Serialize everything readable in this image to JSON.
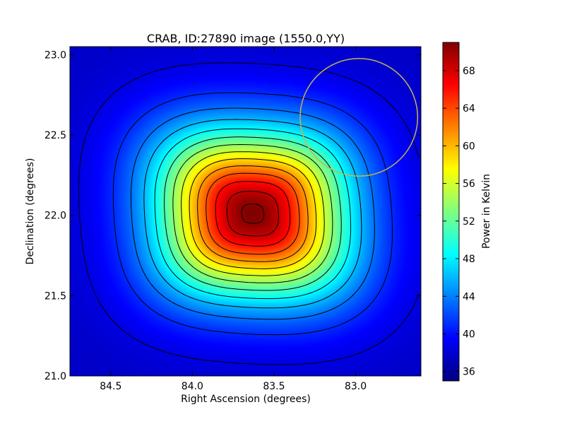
{
  "chart_data": {
    "type": "heatmap",
    "title": "CRAB, ID:27890 image (1550.0,YY)",
    "xlabel": "Right Ascension (degrees)",
    "ylabel": "Declination (degrees)",
    "colorbar_label": "Power in Kelvin",
    "xlim": [
      84.75,
      82.6
    ],
    "ylim": [
      21.0,
      23.05
    ],
    "x_ticks": [
      84.5,
      84.0,
      83.5,
      83.0
    ],
    "x_tick_labels": [
      "84.5",
      "84.0",
      "83.5",
      "83.0"
    ],
    "y_ticks": [
      21.0,
      21.5,
      22.0,
      22.5,
      23.0
    ],
    "y_tick_labels": [
      "21.0",
      "21.5",
      "22.0",
      "22.5",
      "23.0"
    ],
    "colorbar_range": [
      35,
      71
    ],
    "colorbar_ticks": [
      36,
      40,
      44,
      48,
      52,
      56,
      60,
      64,
      68
    ],
    "colorbar_tick_labels": [
      "36",
      "40",
      "44",
      "48",
      "52",
      "56",
      "60",
      "64",
      "68"
    ],
    "colormap": "jet",
    "source": {
      "ra": 83.63,
      "dec": 22.01,
      "peak": 71,
      "sigma_ra": 0.42,
      "sigma_dec": 0.37,
      "base": 37.5
    },
    "contour_levels": [
      38.5,
      41,
      43.5,
      46,
      48.5,
      51,
      53.5,
      56,
      58.5,
      61,
      63.5,
      66,
      68.5,
      70.5
    ],
    "contour_color": "#000000",
    "beam_circle": {
      "ra": 82.98,
      "dec": 22.61,
      "radius_deg": 0.36,
      "color": "#c8b44a"
    },
    "grid": false
  }
}
